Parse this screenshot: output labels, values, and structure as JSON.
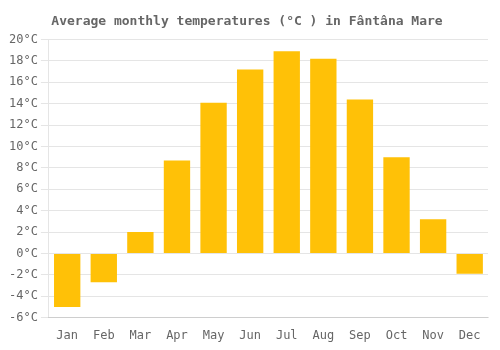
{
  "chart_data": {
    "type": "bar",
    "title": "Average monthly temperatures (°C ) in Fântâna Mare",
    "categories": [
      "Jan",
      "Feb",
      "Mar",
      "Apr",
      "May",
      "Jun",
      "Jul",
      "Aug",
      "Sep",
      "Oct",
      "Nov",
      "Dec"
    ],
    "values": [
      -5.0,
      -2.7,
      2.0,
      8.7,
      14.1,
      17.2,
      18.9,
      18.2,
      14.4,
      9.0,
      3.2,
      -1.9
    ],
    "color": "#FFC107",
    "ylim": [
      -6,
      20
    ],
    "yticks": [
      {
        "value": -6,
        "label": "-6°C"
      },
      {
        "value": -4,
        "label": "-4°C"
      },
      {
        "value": -2,
        "label": "-2°C"
      },
      {
        "value": 0,
        "label": "0°C"
      },
      {
        "value": 2,
        "label": "2°C"
      },
      {
        "value": 4,
        "label": "4°C"
      },
      {
        "value": 6,
        "label": "6°C"
      },
      {
        "value": 8,
        "label": "8°C"
      },
      {
        "value": 10,
        "label": "10°C"
      },
      {
        "value": 12,
        "label": "12°C"
      },
      {
        "value": 14,
        "label": "14°C"
      },
      {
        "value": 16,
        "label": "16°C"
      },
      {
        "value": 18,
        "label": "18°C"
      },
      {
        "value": 20,
        "label": "20°C"
      }
    ],
    "grid": true
  }
}
